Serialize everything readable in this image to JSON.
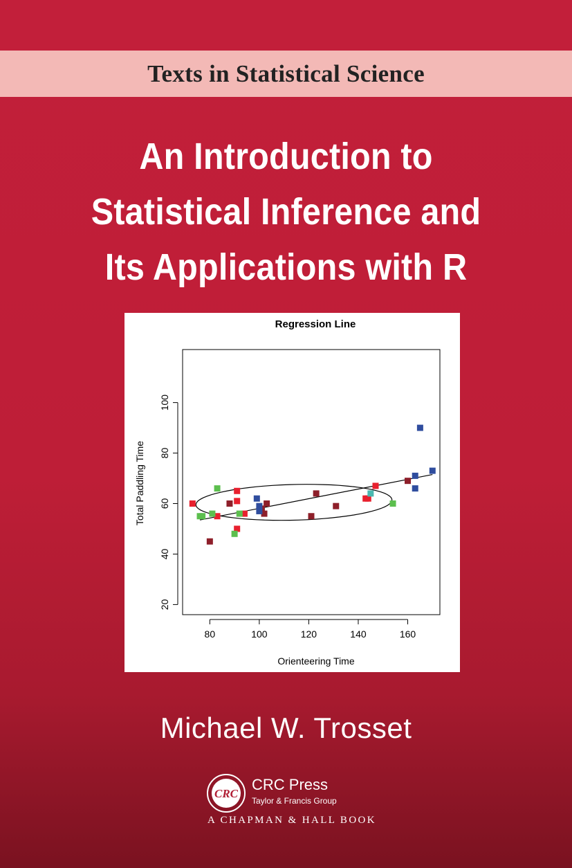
{
  "series": "Texts in Statistical Science",
  "title_lines": [
    "An Introduction to",
    "Statistical Inference and",
    "Its Applications with R"
  ],
  "author": "Michael W. Trosset",
  "publisher": {
    "logo_text": "CRC",
    "name": "CRC Press",
    "group": "Taylor & Francis Group",
    "imprint": "A CHAPMAN & HALL BOOK"
  },
  "colors": {
    "cover_red": "#c21f3a",
    "band_pink": "#f3b9b6",
    "point_red": "#e8202e",
    "point_darkred": "#8e1f2a",
    "point_green": "#5cbf4e",
    "point_blue": "#2f4d9e",
    "point_teal": "#4ab8b0"
  },
  "chart_data": {
    "type": "scatter",
    "title": "Regression Line",
    "xlabel": "Orienteering Time",
    "ylabel": "Total Paddling Time",
    "xlim": [
      69,
      173
    ],
    "ylim": [
      16,
      121
    ],
    "xticks": [
      80,
      100,
      120,
      140,
      160
    ],
    "yticks": [
      20,
      40,
      60,
      80,
      100
    ],
    "grid": false,
    "legend": "none",
    "regression_line": {
      "x": [
        76,
        170
      ],
      "y": [
        53.5,
        71.5
      ]
    },
    "ellipse": {
      "cx": 114,
      "cy": 60.5,
      "rx": 40,
      "ry": 7,
      "angle_deg": 10.8
    },
    "series": [
      {
        "color": "red",
        "points": [
          [
            73,
            60
          ],
          [
            83,
            55
          ],
          [
            91,
            65
          ],
          [
            91,
            61
          ],
          [
            91,
            50
          ],
          [
            94,
            56
          ],
          [
            143,
            62
          ],
          [
            144,
            62
          ],
          [
            147,
            67
          ]
        ]
      },
      {
        "color": "darkred",
        "points": [
          [
            80,
            45
          ],
          [
            88,
            60
          ],
          [
            101,
            58
          ],
          [
            102,
            56
          ],
          [
            103,
            60
          ],
          [
            121,
            55
          ],
          [
            123,
            64
          ],
          [
            131,
            59
          ],
          [
            160,
            69
          ]
        ]
      },
      {
        "color": "green",
        "points": [
          [
            76,
            55
          ],
          [
            77,
            55
          ],
          [
            81,
            56
          ],
          [
            83,
            66
          ],
          [
            90,
            48
          ],
          [
            92,
            56
          ],
          [
            154,
            60
          ]
        ]
      },
      {
        "color": "blue",
        "points": [
          [
            99,
            62
          ],
          [
            100,
            57
          ],
          [
            100,
            59
          ],
          [
            163,
            71
          ],
          [
            163,
            66
          ],
          [
            165,
            90
          ],
          [
            170,
            73
          ]
        ]
      },
      {
        "color": "teal",
        "points": [
          [
            145,
            64
          ]
        ]
      }
    ]
  }
}
